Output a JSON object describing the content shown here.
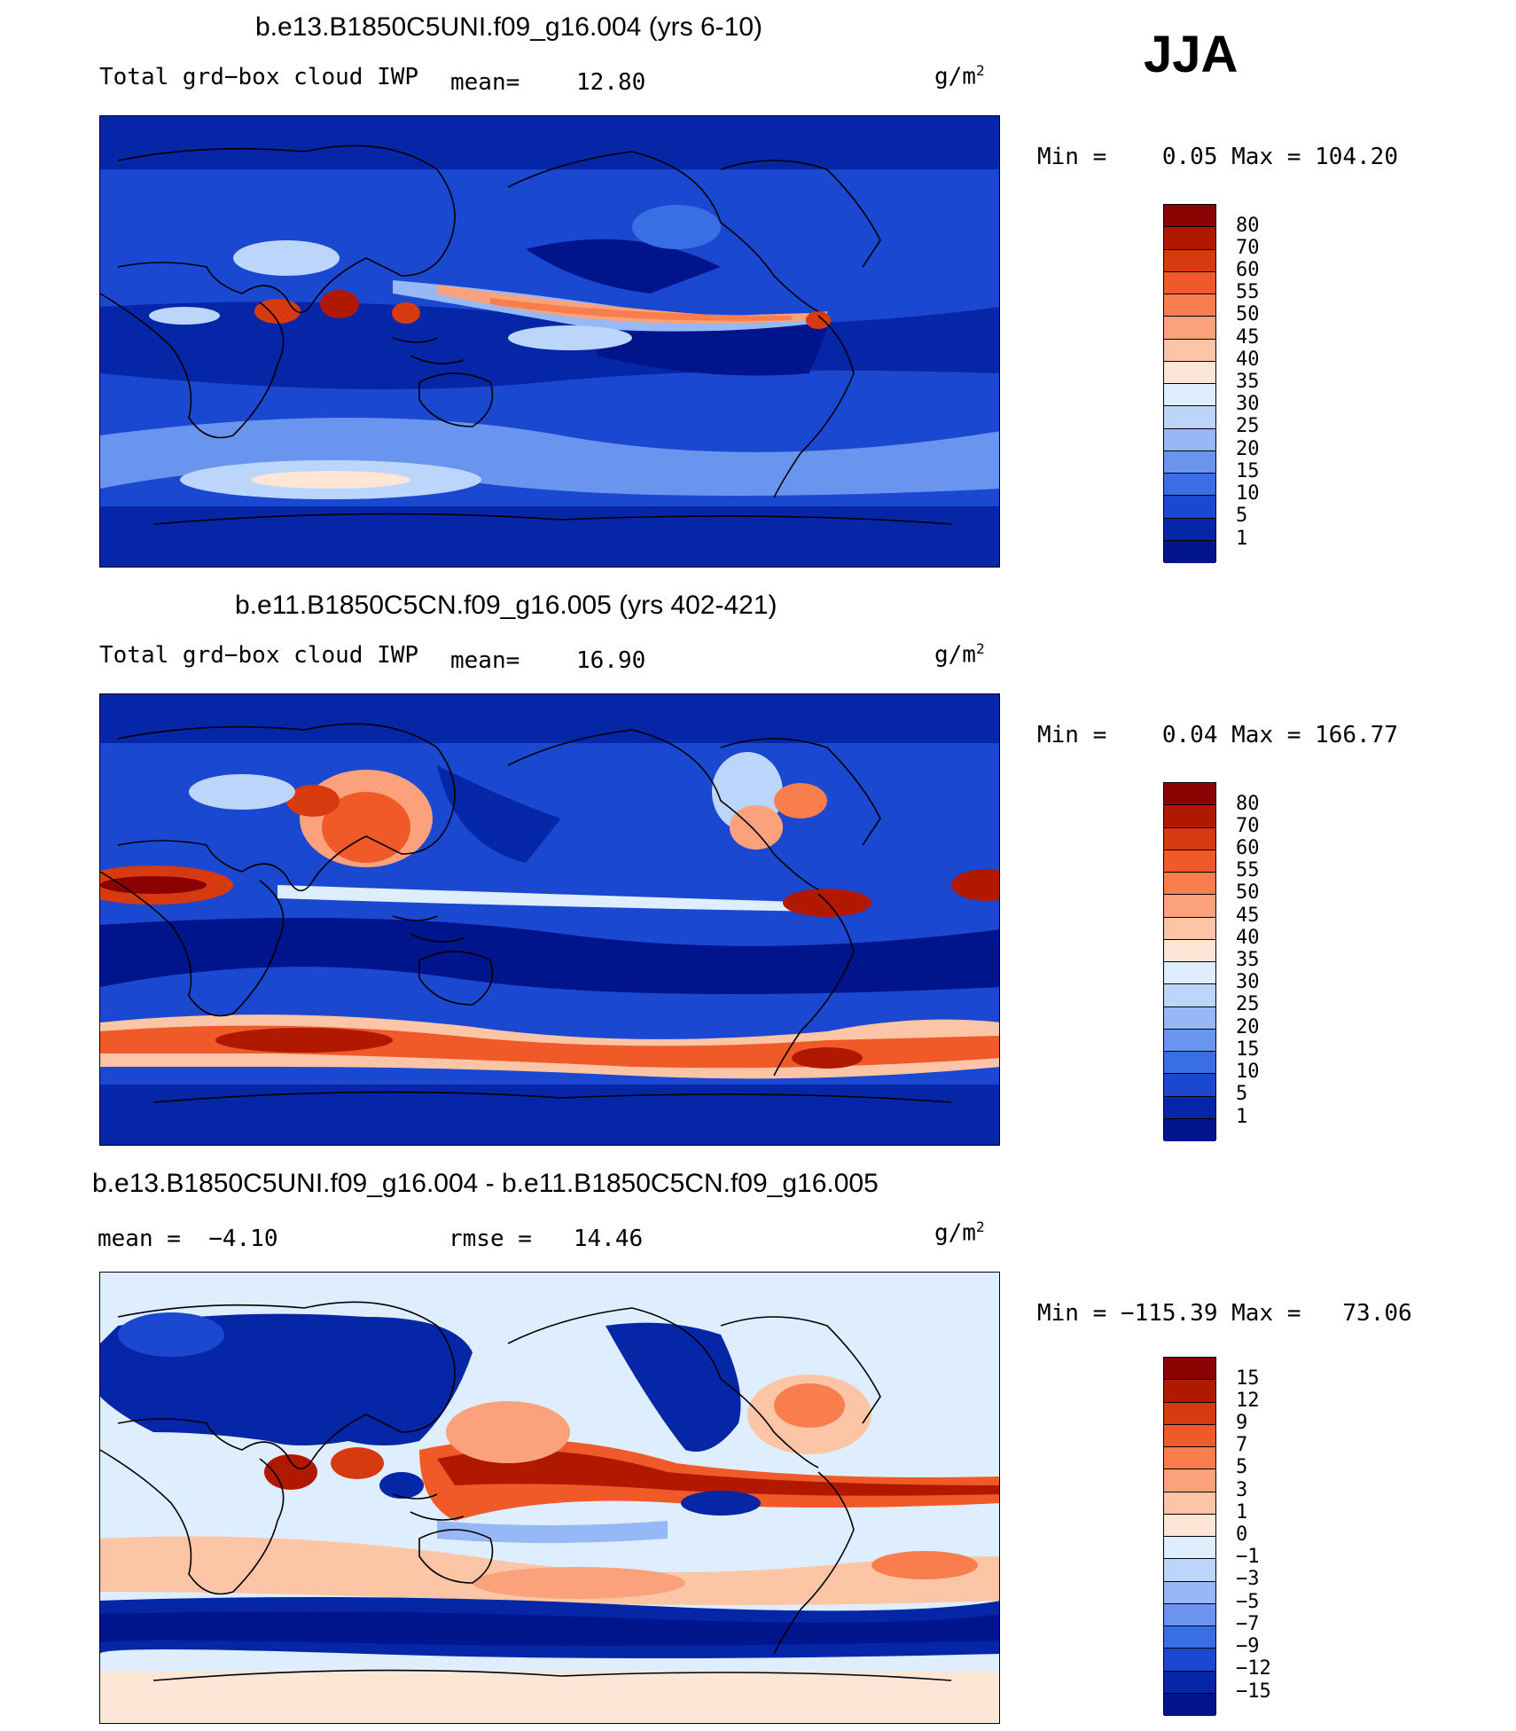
{
  "season": "JJA",
  "units_text": "g/m",
  "units_sup": "2",
  "panels": [
    {
      "title": "b.e13.B1850C5UNI.f09_g16.004 (yrs 6-10)",
      "variable": "Total grd−box cloud IWP",
      "mean_label": "mean=",
      "mean_value": "12.80",
      "range_text": "Min =    0.05 Max = 104.20",
      "colorbar_labels": [
        "80",
        "70",
        "60",
        "55",
        "50",
        "45",
        "40",
        "35",
        "30",
        "25",
        "20",
        "15",
        "10",
        "5",
        "1"
      ]
    },
    {
      "title": "b.e11.B1850C5CN.f09_g16.005 (yrs 402-421)",
      "variable": "Total grd−box cloud IWP",
      "mean_label": "mean=",
      "mean_value": "16.90",
      "range_text": "Min =    0.04 Max = 166.77",
      "colorbar_labels": [
        "80",
        "70",
        "60",
        "55",
        "50",
        "45",
        "40",
        "35",
        "30",
        "25",
        "20",
        "15",
        "10",
        "5",
        "1"
      ]
    },
    {
      "title": "b.e13.B1850C5UNI.f09_g16.004 - b.e11.B1850C5CN.f09_g16.005",
      "mean_text": "mean =  −4.10",
      "rmse_text": "rmse =   14.46",
      "range_text": "Min = −115.39 Max =   73.06",
      "colorbar_labels": [
        "15",
        "12",
        "9",
        "7",
        "5",
        "3",
        "1",
        "0",
        "−1",
        "−3",
        "−5",
        "−7",
        "−9",
        "−12",
        "−15"
      ]
    }
  ],
  "colors": {
    "abs_scale": [
      "#8b0000",
      "#b01800",
      "#d83a10",
      "#f05a28",
      "#f87e4e",
      "#fba27c",
      "#fcc5a6",
      "#fde6d6",
      "#dfeefe",
      "#bcd6fb",
      "#96b8f6",
      "#6a95ee",
      "#3a6ee4",
      "#1a48d0",
      "#0626a8",
      "#00148c"
    ],
    "diff_scale": [
      "#8b0000",
      "#b01800",
      "#d83a10",
      "#f05a28",
      "#f87e4e",
      "#fba27c",
      "#fcc5a6",
      "#fde6d6",
      "#dfeefe",
      "#bcd6fb",
      "#96b8f6",
      "#6a95ee",
      "#3a6ee4",
      "#1a48d0",
      "#0626a8",
      "#00148c"
    ]
  }
}
